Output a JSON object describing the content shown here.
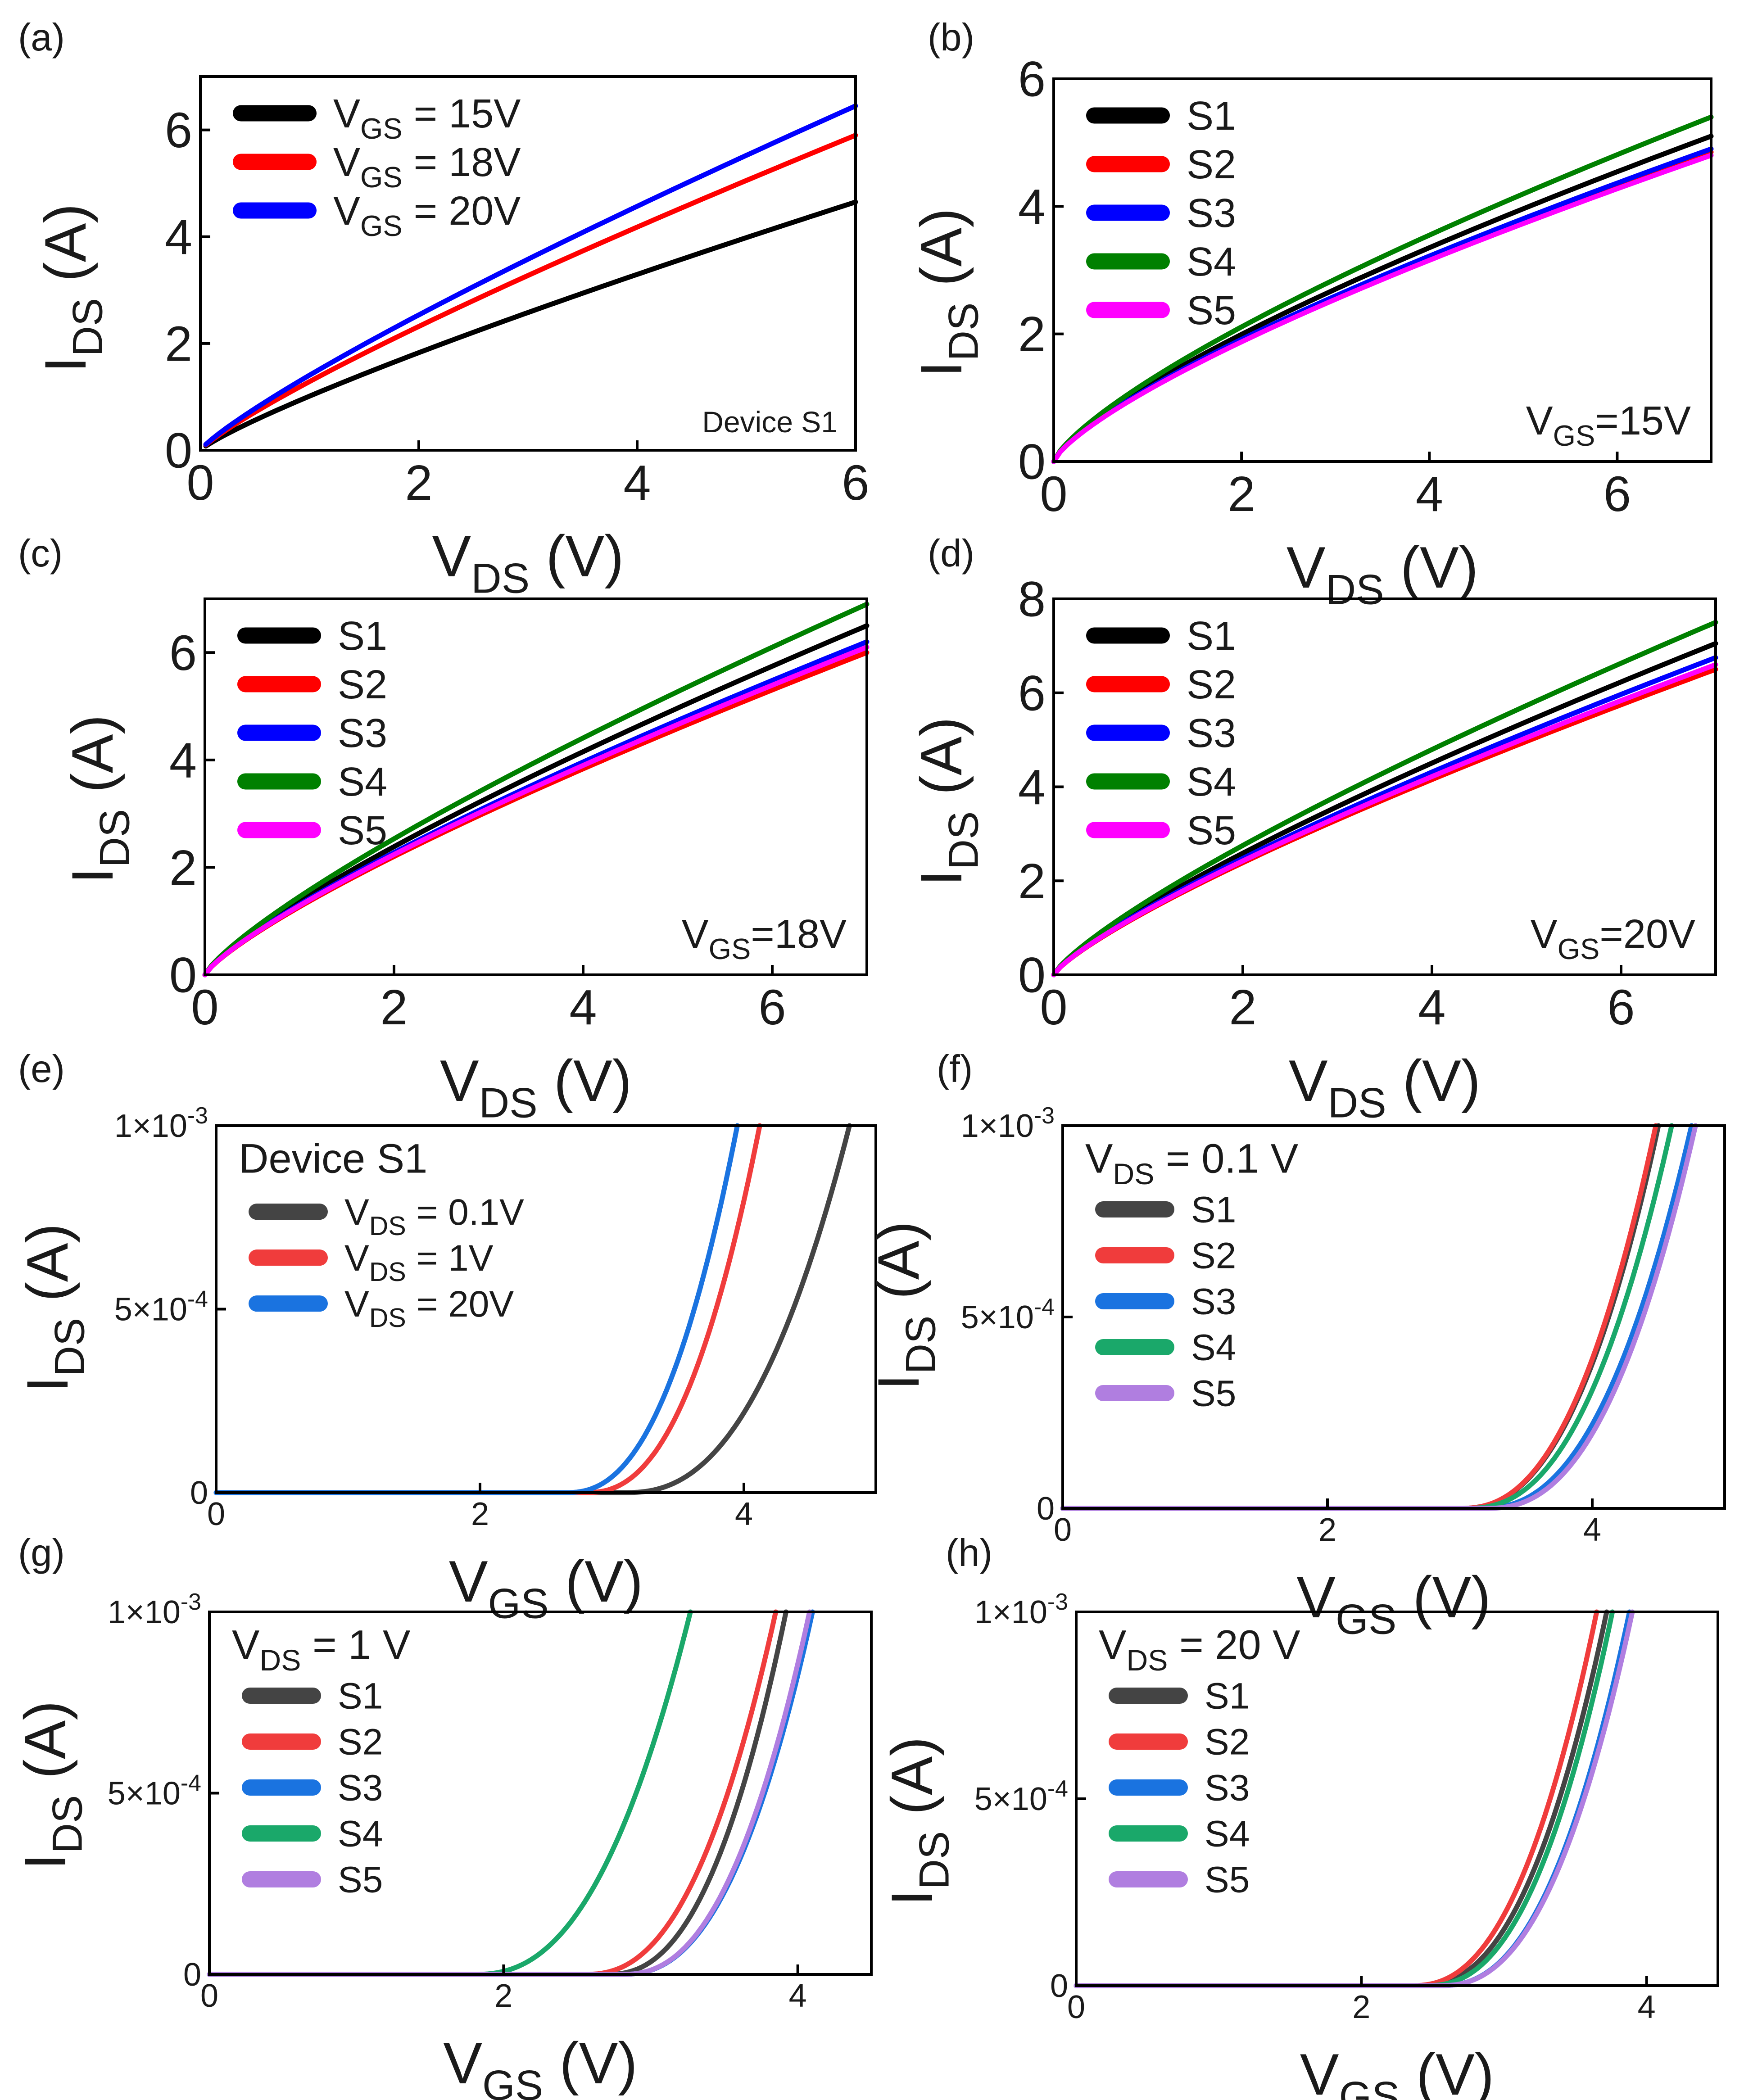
{
  "chart_data": [
    {
      "type": "line",
      "panel_label": "(a)",
      "xlabel_main": "V",
      "xlabel_sub": "DS",
      "xlabel_unit": " (V)",
      "ylabel_main": "I",
      "ylabel_sub": "DS",
      "ylabel_unit": " (A)",
      "xlim": [
        0,
        6
      ],
      "ylim": [
        0,
        7.0
      ],
      "xticks": [
        0,
        2,
        4,
        6
      ],
      "yticks": [
        0,
        2,
        4,
        6
      ],
      "tick_labels_x": [
        "0",
        "2",
        "4",
        "6"
      ],
      "tick_labels_y": [
        "0",
        "2",
        "4",
        "6"
      ],
      "legend_position": "top-left",
      "annotation": {
        "text": "Device S1",
        "position": "bottom-right"
      },
      "series": [
        {
          "legend_main": "V",
          "legend_sub": "GS",
          "legend_rest": " = 15V",
          "color": "#000000",
          "x_start": 0.05,
          "x_end": 6,
          "y_end": 4.65,
          "power": 0.85
        },
        {
          "legend_main": "V",
          "legend_sub": "GS",
          "legend_rest": " = 18V",
          "color": "#ff0000",
          "x_start": 0.05,
          "x_end": 6,
          "y_end": 5.9,
          "power": 0.85
        },
        {
          "legend_main": "V",
          "legend_sub": "GS",
          "legend_rest": " = 20V",
          "color": "#0000ff",
          "x_start": 0.05,
          "x_end": 6,
          "y_end": 6.45,
          "power": 0.85
        }
      ]
    },
    {
      "type": "line",
      "panel_label": "(b)",
      "xlabel_main": "V",
      "xlabel_sub": "DS",
      "xlabel_unit": " (V)",
      "ylabel_main": "I",
      "ylabel_sub": "DS",
      "ylabel_unit": " (A)",
      "xlim": [
        0,
        7
      ],
      "ylim": [
        0,
        6
      ],
      "xticks": [
        0,
        2,
        4,
        6
      ],
      "yticks": [
        0,
        2,
        4,
        6
      ],
      "tick_labels_x": [
        "0",
        "2",
        "4",
        "6"
      ],
      "tick_labels_y": [
        "0",
        "2",
        "4",
        "6"
      ],
      "legend_position": "top-left",
      "annotation": {
        "text_main": "V",
        "text_sub": "GS",
        "text_rest": "=15V",
        "position": "bottom-right"
      },
      "series": [
        {
          "legend_main": "S1",
          "color": "#000000",
          "x_start": 0,
          "x_end": 7,
          "y_end": 5.1,
          "power": 0.75
        },
        {
          "legend_main": "S2",
          "color": "#ff0000",
          "x_start": 0,
          "x_end": 7,
          "y_end": 4.85,
          "power": 0.75
        },
        {
          "legend_main": "S3",
          "color": "#0000ff",
          "x_start": 0,
          "x_end": 7,
          "y_end": 4.9,
          "power": 0.75
        },
        {
          "legend_main": "S4",
          "color": "#008000",
          "x_start": 0,
          "x_end": 7,
          "y_end": 5.4,
          "power": 0.75
        },
        {
          "legend_main": "S5",
          "color": "#ff00ff",
          "x_start": 0,
          "x_end": 7,
          "y_end": 4.8,
          "power": 0.75
        }
      ]
    },
    {
      "type": "line",
      "panel_label": "(c)",
      "xlabel_main": "V",
      "xlabel_sub": "DS",
      "xlabel_unit": " (V)",
      "ylabel_main": "I",
      "ylabel_sub": "DS",
      "ylabel_unit": " (A)",
      "xlim": [
        0,
        7
      ],
      "ylim": [
        0,
        7
      ],
      "xticks": [
        0,
        2,
        4,
        6
      ],
      "yticks": [
        0,
        2,
        4,
        6
      ],
      "tick_labels_x": [
        "0",
        "2",
        "4",
        "6"
      ],
      "tick_labels_y": [
        "0",
        "2",
        "4",
        "6"
      ],
      "legend_position": "top-left",
      "annotation": {
        "text_main": "V",
        "text_sub": "GS",
        "text_rest": "=18V",
        "position": "bottom-right"
      },
      "series": [
        {
          "legend_main": "S1",
          "color": "#000000",
          "x_start": 0,
          "x_end": 7,
          "y_end": 6.5,
          "power": 0.8
        },
        {
          "legend_main": "S2",
          "color": "#ff0000",
          "x_start": 0,
          "x_end": 7,
          "y_end": 6.0,
          "power": 0.8
        },
        {
          "legend_main": "S3",
          "color": "#0000ff",
          "x_start": 0,
          "x_end": 7,
          "y_end": 6.2,
          "power": 0.8
        },
        {
          "legend_main": "S4",
          "color": "#008000",
          "x_start": 0,
          "x_end": 7,
          "y_end": 6.9,
          "power": 0.8
        },
        {
          "legend_main": "S5",
          "color": "#ff00ff",
          "x_start": 0,
          "x_end": 7,
          "y_end": 6.1,
          "power": 0.8
        }
      ]
    },
    {
      "type": "line",
      "panel_label": "(d)",
      "xlabel_main": "V",
      "xlabel_sub": "DS",
      "xlabel_unit": " (V)",
      "ylabel_main": "I",
      "ylabel_sub": "DS",
      "ylabel_unit": " (A)",
      "xlim": [
        0,
        7
      ],
      "ylim": [
        0,
        8
      ],
      "xticks": [
        0,
        2,
        4,
        6
      ],
      "yticks": [
        0,
        2,
        4,
        6,
        8
      ],
      "tick_labels_x": [
        "0",
        "2",
        "4",
        "6"
      ],
      "tick_labels_y": [
        "0",
        "2",
        "4",
        "6",
        "8"
      ],
      "legend_position": "top-left",
      "annotation": {
        "text_main": "V",
        "text_sub": "GS",
        "text_rest": "=20V",
        "position": "bottom-right"
      },
      "series": [
        {
          "legend_main": "S1",
          "color": "#000000",
          "x_start": 0,
          "x_end": 7,
          "y_end": 7.05,
          "power": 0.8
        },
        {
          "legend_main": "S2",
          "color": "#ff0000",
          "x_start": 0,
          "x_end": 7,
          "y_end": 6.5,
          "power": 0.8
        },
        {
          "legend_main": "S3",
          "color": "#0000ff",
          "x_start": 0,
          "x_end": 7,
          "y_end": 6.75,
          "power": 0.8
        },
        {
          "legend_main": "S4",
          "color": "#008000",
          "x_start": 0,
          "x_end": 7,
          "y_end": 7.5,
          "power": 0.8
        },
        {
          "legend_main": "S5",
          "color": "#ff00ff",
          "x_start": 0,
          "x_end": 7,
          "y_end": 6.6,
          "power": 0.8
        }
      ]
    },
    {
      "type": "line",
      "panel_label": "(e)",
      "xlabel_main": "V",
      "xlabel_sub": "GS",
      "xlabel_unit": " (V)",
      "ylabel_main": "I",
      "ylabel_sub": "DS",
      "ylabel_unit": " (A)",
      "xlim": [
        0,
        5
      ],
      "ylim": [
        0,
        0.001
      ],
      "xticks": [
        0,
        2,
        4
      ],
      "yticks": [
        0,
        0.0005,
        0.001
      ],
      "tick_labels_x": [
        "0",
        "2",
        "4"
      ],
      "tick_labels_y": [
        {
          "mant": "0"
        },
        {
          "mant": "5×10",
          "exp": "-4"
        },
        {
          "mant": "1×10",
          "exp": "-3"
        }
      ],
      "legend_position": "top-left",
      "legend_title": "Device S1",
      "series": [
        {
          "legend_main": "V",
          "legend_sub": "DS",
          "legend_rest": " = 0.1V",
          "color": "#444444",
          "threshold": 3.1,
          "x_at_max": 4.8,
          "power": 2.4
        },
        {
          "legend_main": "V",
          "legend_sub": "DS",
          "legend_rest": " = 1V",
          "color": "#f03c3c",
          "threshold": 2.8,
          "x_at_max": 4.12,
          "power": 2.4
        },
        {
          "legend_main": "V",
          "legend_sub": "DS",
          "legend_rest": " = 20V",
          "color": "#1a73e0",
          "threshold": 2.65,
          "x_at_max": 3.95,
          "power": 2.4
        }
      ]
    },
    {
      "type": "line",
      "panel_label": "(f)",
      "xlabel_main": "V",
      "xlabel_sub": "GS",
      "xlabel_unit": " (V)",
      "ylabel_main": "I",
      "ylabel_sub": "DS",
      "ylabel_unit": " (A)",
      "xlim": [
        0,
        5
      ],
      "ylim": [
        0,
        0.001
      ],
      "xticks": [
        0,
        2,
        4
      ],
      "yticks": [
        0,
        0.0005,
        0.001
      ],
      "tick_labels_x": [
        "0",
        "2",
        "4"
      ],
      "tick_labels_y": [
        {
          "mant": "0"
        },
        {
          "mant": "5×10",
          "exp": "-4"
        },
        {
          "mant": "1×10",
          "exp": "-3"
        }
      ],
      "legend_position": "top-left",
      "legend_title_main": "V",
      "legend_title_sub": "DS",
      "legend_title_rest": " = 0.1 V",
      "series": [
        {
          "legend_main": "S1",
          "color": "#444444",
          "threshold": 3.0,
          "x_at_max": 4.5,
          "power": 2.4
        },
        {
          "legend_main": "S2",
          "color": "#f03c3c",
          "threshold": 3.0,
          "x_at_max": 4.48,
          "power": 2.4
        },
        {
          "legend_main": "S3",
          "color": "#1a73e0",
          "threshold": 3.15,
          "x_at_max": 4.75,
          "power": 2.4
        },
        {
          "legend_main": "S4",
          "color": "#1aa86a",
          "threshold": 3.05,
          "x_at_max": 4.6,
          "power": 2.4
        },
        {
          "legend_main": "S5",
          "color": "#b07ee0",
          "threshold": 3.2,
          "x_at_max": 4.78,
          "power": 2.4
        }
      ]
    },
    {
      "type": "line",
      "panel_label": "(g)",
      "xlabel_main": "V",
      "xlabel_sub": "GS",
      "xlabel_unit": " (V)",
      "ylabel_main": "I",
      "ylabel_sub": "DS",
      "ylabel_unit": " (A)",
      "xlim": [
        0,
        4.5
      ],
      "ylim": [
        0,
        0.001
      ],
      "xticks": [
        0,
        2,
        4
      ],
      "yticks": [
        0,
        0.0005,
        0.001
      ],
      "tick_labels_x": [
        "0",
        "2",
        "4"
      ],
      "tick_labels_y": [
        {
          "mant": "0"
        },
        {
          "mant": "5×10",
          "exp": "-4"
        },
        {
          "mant": "1×10",
          "exp": "-3"
        }
      ],
      "legend_position": "top-left",
      "legend_title_main": "V",
      "legend_title_sub": "DS",
      "legend_title_rest": " = 1 V",
      "series": [
        {
          "legend_main": "S1",
          "color": "#444444",
          "threshold": 2.7,
          "x_at_max": 3.92,
          "power": 2.4
        },
        {
          "legend_main": "S2",
          "color": "#f03c3c",
          "threshold": 2.55,
          "x_at_max": 3.85,
          "power": 2.4
        },
        {
          "legend_main": "S3",
          "color": "#1a73e0",
          "threshold": 2.8,
          "x_at_max": 4.1,
          "power": 2.4
        },
        {
          "legend_main": "S4",
          "color": "#1aa86a",
          "threshold": 1.8,
          "x_at_max": 3.27,
          "power": 2.4
        },
        {
          "legend_main": "S5",
          "color": "#b07ee0",
          "threshold": 2.8,
          "x_at_max": 4.08,
          "power": 2.4
        }
      ]
    },
    {
      "type": "line",
      "panel_label": "(h)",
      "xlabel_main": "V",
      "xlabel_sub": "GS",
      "xlabel_unit": " (V)",
      "ylabel_main": "I",
      "ylabel_sub": "DS",
      "ylabel_unit": " (A)",
      "xlim": [
        0,
        4.5
      ],
      "ylim": [
        0,
        0.001
      ],
      "xticks": [
        0,
        2,
        4
      ],
      "yticks": [
        0,
        0.0005,
        0.001
      ],
      "tick_labels_x": [
        "0",
        "2",
        "4"
      ],
      "tick_labels_y": [
        {
          "mant": "0"
        },
        {
          "mant": "5×10",
          "exp": "-4"
        },
        {
          "mant": "1×10",
          "exp": "-3"
        }
      ],
      "legend_position": "top-left",
      "legend_title_main": "V",
      "legend_title_sub": "DS",
      "legend_title_rest": " = 20 V",
      "series": [
        {
          "legend_main": "S1",
          "color": "#444444",
          "threshold": 2.4,
          "x_at_max": 3.72,
          "power": 2.4
        },
        {
          "legend_main": "S2",
          "color": "#f03c3c",
          "threshold": 2.35,
          "x_at_max": 3.65,
          "power": 2.4
        },
        {
          "legend_main": "S3",
          "color": "#1a73e0",
          "threshold": 2.55,
          "x_at_max": 3.88,
          "power": 2.4
        },
        {
          "legend_main": "S4",
          "color": "#1aa86a",
          "threshold": 2.45,
          "x_at_max": 3.76,
          "power": 2.4
        },
        {
          "legend_main": "S5",
          "color": "#b07ee0",
          "threshold": 2.55,
          "x_at_max": 3.9,
          "power": 2.4
        }
      ]
    }
  ]
}
